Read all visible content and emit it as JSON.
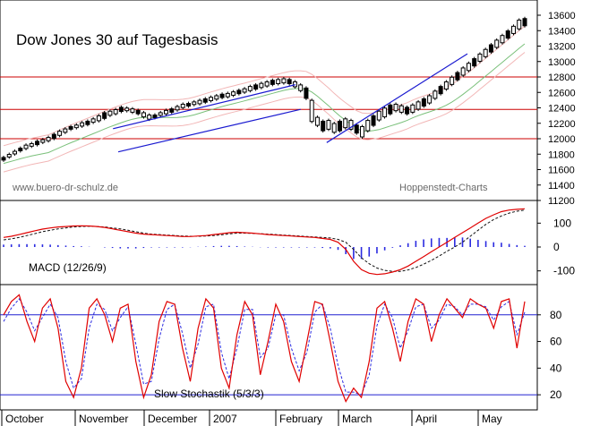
{
  "chart_data": {
    "type": "line",
    "title": "Dow Jones 30 auf Tagesbasis",
    "watermark_left": "www.buero-dr-schulz.de",
    "watermark_right": "Hoppenstedt-Charts",
    "x_axis": {
      "labels": [
        "October",
        "November",
        "December",
        "2007",
        "February",
        "March",
        "April",
        "May"
      ]
    },
    "price_panel": {
      "ylim": [
        11200,
        13600
      ],
      "ticks": [
        11200,
        11400,
        11600,
        11800,
        12000,
        12200,
        12400,
        12600,
        12800,
        13000,
        13200,
        13400,
        13600
      ],
      "horizontal_lines": [
        12000,
        12380,
        12800
      ],
      "candles": [
        [
          11700,
          11780
        ],
        [
          11740,
          11820
        ],
        [
          11780,
          11860
        ],
        [
          11820,
          11900
        ],
        [
          11850,
          11940
        ],
        [
          11880,
          11960
        ],
        [
          11900,
          11990
        ],
        [
          11930,
          12010
        ],
        [
          11950,
          12040
        ],
        [
          11980,
          12080
        ],
        [
          12020,
          12120
        ],
        [
          12060,
          12150
        ],
        [
          12100,
          12180
        ],
        [
          12120,
          12200
        ],
        [
          12140,
          12230
        ],
        [
          12160,
          12250
        ],
        [
          12190,
          12280
        ],
        [
          12210,
          12320
        ],
        [
          12240,
          12360
        ],
        [
          12280,
          12380
        ],
        [
          12300,
          12400
        ],
        [
          12330,
          12430
        ],
        [
          12340,
          12420
        ],
        [
          12320,
          12410
        ],
        [
          12300,
          12390
        ],
        [
          12260,
          12360
        ],
        [
          12230,
          12330
        ],
        [
          12250,
          12330
        ],
        [
          12280,
          12360
        ],
        [
          12300,
          12390
        ],
        [
          12320,
          12410
        ],
        [
          12350,
          12440
        ],
        [
          12380,
          12470
        ],
        [
          12400,
          12480
        ],
        [
          12420,
          12500
        ],
        [
          12430,
          12520
        ],
        [
          12450,
          12540
        ],
        [
          12470,
          12560
        ],
        [
          12490,
          12580
        ],
        [
          12510,
          12600
        ],
        [
          12520,
          12610
        ],
        [
          12540,
          12630
        ],
        [
          12560,
          12650
        ],
        [
          12580,
          12670
        ],
        [
          12600,
          12700
        ],
        [
          12620,
          12720
        ],
        [
          12640,
          12740
        ],
        [
          12660,
          12760
        ],
        [
          12680,
          12780
        ],
        [
          12690,
          12790
        ],
        [
          12700,
          12800
        ],
        [
          12690,
          12790
        ],
        [
          12650,
          12760
        ],
        [
          12600,
          12720
        ],
        [
          12500,
          12680
        ],
        [
          12200,
          12520
        ],
        [
          12150,
          12300
        ],
        [
          12080,
          12250
        ],
        [
          12100,
          12260
        ],
        [
          12060,
          12220
        ],
        [
          12080,
          12250
        ],
        [
          12120,
          12280
        ],
        [
          12100,
          12260
        ],
        [
          12050,
          12200
        ],
        [
          12000,
          12180
        ],
        [
          12080,
          12260
        ],
        [
          12150,
          12320
        ],
        [
          12220,
          12380
        ],
        [
          12260,
          12420
        ],
        [
          12300,
          12460
        ],
        [
          12340,
          12470
        ],
        [
          12320,
          12450
        ],
        [
          12300,
          12430
        ],
        [
          12320,
          12460
        ],
        [
          12360,
          12500
        ],
        [
          12400,
          12540
        ],
        [
          12440,
          12580
        ],
        [
          12500,
          12640
        ],
        [
          12560,
          12700
        ],
        [
          12620,
          12760
        ],
        [
          12680,
          12820
        ],
        [
          12740,
          12880
        ],
        [
          12800,
          12940
        ],
        [
          12860,
          13000
        ],
        [
          12920,
          13060
        ],
        [
          12980,
          13120
        ],
        [
          13040,
          13180
        ],
        [
          13100,
          13240
        ],
        [
          13160,
          13300
        ],
        [
          13220,
          13360
        ],
        [
          13280,
          13420
        ],
        [
          13340,
          13480
        ],
        [
          13400,
          13560
        ],
        [
          13440,
          13580
        ]
      ],
      "trendlines": [
        {
          "from": [
            11830,
            0.22
          ],
          "to": [
            12380,
            0.57
          ]
        },
        {
          "from": [
            12130,
            0.21
          ],
          "to": [
            12700,
            0.56
          ]
        },
        {
          "from": [
            11950,
            0.62
          ],
          "to": [
            13100,
            0.89
          ]
        }
      ]
    },
    "macd_panel": {
      "label": "MACD (12/26/9)",
      "ylim": [
        -150,
        180
      ],
      "ticks": [
        -100,
        0,
        100
      ],
      "macd_line": [
        40,
        45,
        52,
        60,
        68,
        75,
        80,
        84,
        86,
        88,
        89,
        88,
        86,
        82,
        76,
        70,
        64,
        58,
        54,
        52,
        50,
        48,
        46,
        44,
        44,
        46,
        48,
        52,
        56,
        60,
        62,
        60,
        58,
        55,
        52,
        50,
        48,
        46,
        44,
        42,
        40,
        36,
        32,
        20,
        -10,
        -60,
        -95,
        -110,
        -115,
        -112,
        -105,
        -95,
        -80,
        -60,
        -40,
        -20,
        0,
        20,
        40,
        60,
        80,
        100,
        120,
        135,
        148,
        155,
        158,
        160
      ],
      "signal_line": [
        30,
        34,
        40,
        48,
        56,
        64,
        70,
        76,
        80,
        84,
        86,
        87,
        86,
        84,
        80,
        76,
        70,
        64,
        58,
        54,
        52,
        50,
        48,
        46,
        45,
        45,
        46,
        48,
        51,
        55,
        58,
        58,
        57,
        56,
        54,
        52,
        50,
        48,
        46,
        44,
        42,
        40,
        38,
        32,
        20,
        -10,
        -45,
        -70,
        -88,
        -98,
        -102,
        -102,
        -96,
        -86,
        -72,
        -56,
        -38,
        -18,
        0,
        20,
        45,
        70,
        95,
        115,
        130,
        142,
        150,
        155
      ],
      "histogram": [
        10,
        11,
        12,
        12,
        12,
        11,
        10,
        8,
        6,
        4,
        3,
        1,
        0,
        -2,
        -4,
        -6,
        -6,
        -6,
        -4,
        -2,
        -2,
        -2,
        -2,
        -2,
        -1,
        1,
        2,
        4,
        5,
        5,
        4,
        2,
        1,
        -1,
        -2,
        -2,
        -2,
        -2,
        -2,
        -2,
        -2,
        -4,
        -6,
        -12,
        -30,
        -50,
        -50,
        -40,
        -27,
        -14,
        -3,
        7,
        16,
        26,
        32,
        36,
        38,
        38,
        40,
        40,
        35,
        30,
        25,
        20,
        18,
        13,
        8,
        5
      ]
    },
    "stoch_panel": {
      "label": "Slow Stochastik (5/3/3)",
      "ylim": [
        10,
        100
      ],
      "ticks": [
        20,
        40,
        60,
        80
      ],
      "reference_lines": [
        20,
        80
      ],
      "k_line": [
        80,
        90,
        95,
        75,
        60,
        85,
        92,
        70,
        30,
        18,
        40,
        85,
        92,
        80,
        60,
        85,
        88,
        45,
        18,
        35,
        75,
        90,
        88,
        55,
        30,
        70,
        92,
        85,
        40,
        25,
        65,
        90,
        80,
        35,
        60,
        88,
        75,
        45,
        30,
        60,
        90,
        88,
        60,
        30,
        15,
        25,
        18,
        45,
        85,
        90,
        70,
        45,
        75,
        92,
        88,
        60,
        80,
        92,
        85,
        78,
        92,
        88,
        85,
        70,
        90,
        92,
        55,
        90
      ],
      "d_line": [
        75,
        85,
        92,
        82,
        68,
        78,
        88,
        78,
        45,
        25,
        32,
        70,
        88,
        84,
        68,
        78,
        86,
        58,
        28,
        30,
        62,
        84,
        88,
        66,
        40,
        58,
        86,
        88,
        52,
        32,
        55,
        84,
        84,
        48,
        55,
        80,
        80,
        55,
        38,
        52,
        82,
        88,
        70,
        42,
        22,
        22,
        20,
        35,
        72,
        88,
        78,
        55,
        68,
        86,
        88,
        70,
        76,
        88,
        86,
        80,
        88,
        88,
        86,
        76,
        86,
        90,
        65,
        82
      ]
    },
    "colors": {
      "price_line": "#cc0000",
      "trendline": "#1a1ad0",
      "envelope": "#f2b6b6",
      "moving_average": "#7ac07a",
      "macd_line": "#e00000",
      "signal_line": "#111111",
      "histogram": "#2a2ae0",
      "k_line": "#e00000",
      "d_line": "#2a2ae0",
      "reference_line": "#2020d0",
      "watermark": "#6a6a6a"
    }
  }
}
